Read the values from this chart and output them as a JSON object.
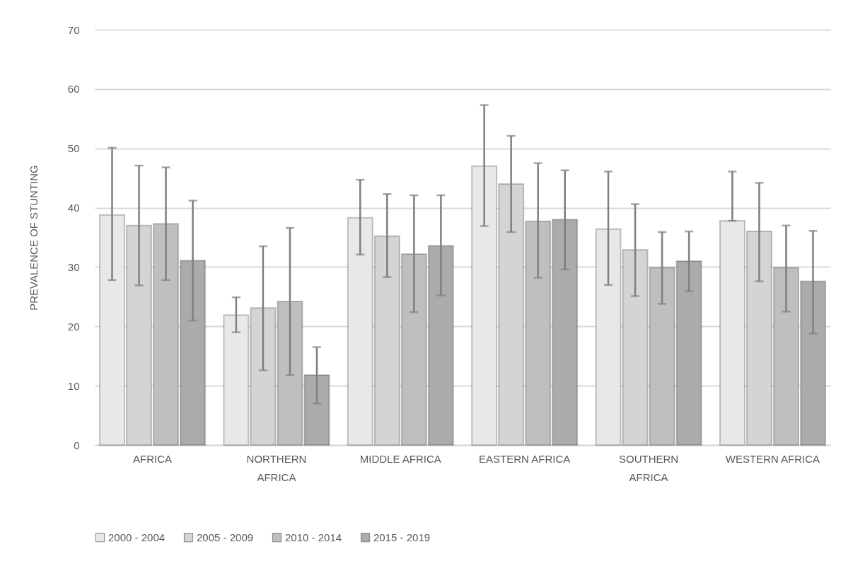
{
  "chart_data": {
    "type": "bar",
    "ylabel": "PREVALENCE OF STUNTING",
    "categories": [
      "AFRICA",
      "NORTHERN AFRICA",
      "MIDDLE AFRICA",
      "EASTERN AFRICA",
      "SOUTHERN AFRICA",
      "WESTERN AFRICA"
    ],
    "series": [
      {
        "name": "2000 - 2004",
        "color": "#e8e8e8",
        "values": [
          38.8,
          21.9,
          38.3,
          47.0,
          36.4,
          37.8
        ],
        "errors": [
          [
            27.8,
            50.1
          ],
          [
            19.0,
            24.9
          ],
          [
            32.1,
            44.7
          ],
          [
            36.9,
            57.3
          ],
          [
            27.0,
            46.1
          ],
          [
            37.8,
            46.1
          ]
        ]
      },
      {
        "name": "2005 - 2009",
        "color": "#d4d4d4",
        "values": [
          37.0,
          23.1,
          35.2,
          44.0,
          32.9,
          36.0
        ],
        "errors": [
          [
            26.9,
            47.1
          ],
          [
            12.6,
            33.5
          ],
          [
            28.3,
            42.3
          ],
          [
            35.9,
            52.1
          ],
          [
            25.1,
            40.6
          ],
          [
            27.6,
            44.2
          ]
        ]
      },
      {
        "name": "2010 - 2014",
        "color": "#bfbfbf",
        "values": [
          37.3,
          24.2,
          32.2,
          37.7,
          29.9,
          29.9
        ],
        "errors": [
          [
            27.8,
            46.8
          ],
          [
            11.8,
            36.6
          ],
          [
            22.4,
            42.1
          ],
          [
            28.2,
            47.5
          ],
          [
            23.8,
            35.9
          ],
          [
            22.5,
            37.0
          ]
        ]
      },
      {
        "name": "2015 - 2019",
        "color": "#ababab",
        "values": [
          31.1,
          11.8,
          33.6,
          38.0,
          31.0,
          27.6
        ],
        "errors": [
          [
            21.0,
            41.2
          ],
          [
            7.0,
            16.5
          ],
          [
            25.2,
            42.1
          ],
          [
            29.6,
            46.3
          ],
          [
            25.9,
            36.0
          ],
          [
            18.8,
            36.1
          ]
        ]
      }
    ],
    "ylim": [
      0,
      70
    ],
    "yticks": [
      0,
      10,
      20,
      30,
      40,
      50,
      60,
      70
    ],
    "grid": "y",
    "legend": "bottom"
  }
}
